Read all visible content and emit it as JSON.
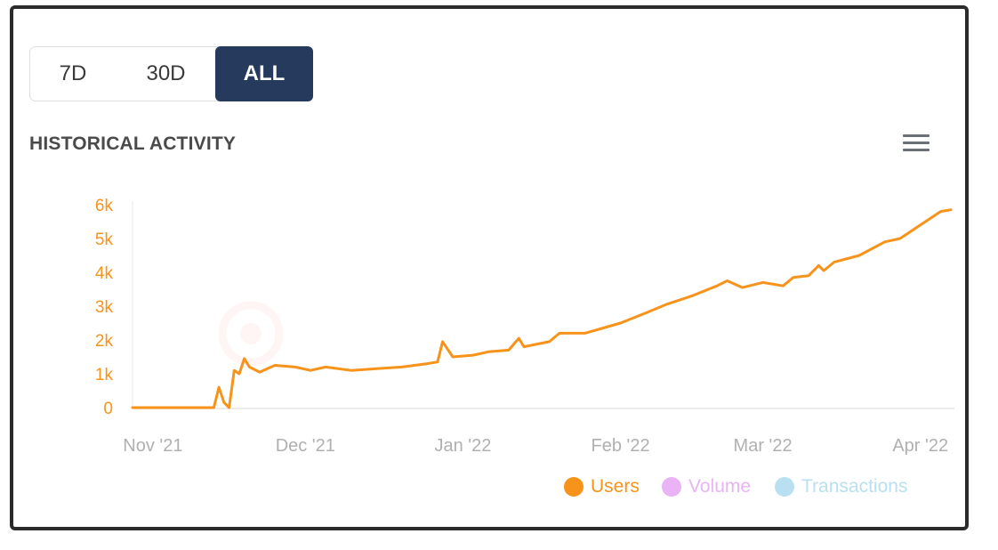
{
  "range_toggle": {
    "options": [
      "7D",
      "30D",
      "ALL"
    ],
    "active": "ALL"
  },
  "header": {
    "title": "HISTORICAL ACTIVITY",
    "menu_icon": "hamburger-menu-icon"
  },
  "colors": {
    "users": "#f7931a",
    "volume": "#e9b3f5",
    "transactions": "#b9e0f0",
    "active_button": "#263a5e",
    "axis_text": "#b0b0b0"
  },
  "chart_data": {
    "type": "line",
    "title": "HISTORICAL ACTIVITY",
    "xlabel": "",
    "ylabel": "",
    "x_ticks": [
      "Nov '21",
      "Dec '21",
      "Jan '22",
      "Feb '22",
      "Mar '22",
      "Apr '22"
    ],
    "y_ticks": [
      "0",
      "1k",
      "2k",
      "3k",
      "4k",
      "5k",
      "6k"
    ],
    "ylim": [
      0,
      6000
    ],
    "xlim": [
      "2021-10-28",
      "2022-04-07"
    ],
    "grid": false,
    "legend": "bottom-right",
    "legend_entries": [
      "Users",
      "Volume",
      "Transactions"
    ],
    "series": [
      {
        "name": "Users",
        "points": [
          [
            "2021-10-28",
            0
          ],
          [
            "2021-11-01",
            0
          ],
          [
            "2021-11-05",
            0
          ],
          [
            "2021-11-10",
            0
          ],
          [
            "2021-11-13",
            0
          ],
          [
            "2021-11-14",
            600
          ],
          [
            "2021-11-15",
            150
          ],
          [
            "2021-11-16",
            0
          ],
          [
            "2021-11-17",
            1100
          ],
          [
            "2021-11-18",
            1000
          ],
          [
            "2021-11-19",
            1450
          ],
          [
            "2021-11-20",
            1200
          ],
          [
            "2021-11-22",
            1050
          ],
          [
            "2021-11-25",
            1250
          ],
          [
            "2021-11-29",
            1200
          ],
          [
            "2021-12-02",
            1100
          ],
          [
            "2021-12-05",
            1200
          ],
          [
            "2021-12-10",
            1100
          ],
          [
            "2021-12-15",
            1150
          ],
          [
            "2021-12-20",
            1200
          ],
          [
            "2021-12-25",
            1300
          ],
          [
            "2021-12-27",
            1350
          ],
          [
            "2021-12-28",
            1950
          ],
          [
            "2021-12-30",
            1500
          ],
          [
            "2022-01-03",
            1550
          ],
          [
            "2022-01-06",
            1650
          ],
          [
            "2022-01-10",
            1700
          ],
          [
            "2022-01-12",
            2050
          ],
          [
            "2022-01-13",
            1800
          ],
          [
            "2022-01-18",
            1950
          ],
          [
            "2022-01-20",
            2200
          ],
          [
            "2022-01-25",
            2200
          ],
          [
            "2022-02-01",
            2500
          ],
          [
            "2022-02-06",
            2800
          ],
          [
            "2022-02-10",
            3050
          ],
          [
            "2022-02-15",
            3300
          ],
          [
            "2022-02-20",
            3600
          ],
          [
            "2022-02-22",
            3750
          ],
          [
            "2022-02-25",
            3550
          ],
          [
            "2022-03-01",
            3700
          ],
          [
            "2022-03-05",
            3600
          ],
          [
            "2022-03-07",
            3850
          ],
          [
            "2022-03-10",
            3900
          ],
          [
            "2022-03-12",
            4200
          ],
          [
            "2022-03-13",
            4050
          ],
          [
            "2022-03-15",
            4300
          ],
          [
            "2022-03-20",
            4500
          ],
          [
            "2022-03-25",
            4900
          ],
          [
            "2022-03-28",
            5000
          ],
          [
            "2022-03-31",
            5300
          ],
          [
            "2022-04-03",
            5600
          ],
          [
            "2022-04-05",
            5800
          ],
          [
            "2022-04-07",
            5850
          ]
        ]
      }
    ]
  }
}
